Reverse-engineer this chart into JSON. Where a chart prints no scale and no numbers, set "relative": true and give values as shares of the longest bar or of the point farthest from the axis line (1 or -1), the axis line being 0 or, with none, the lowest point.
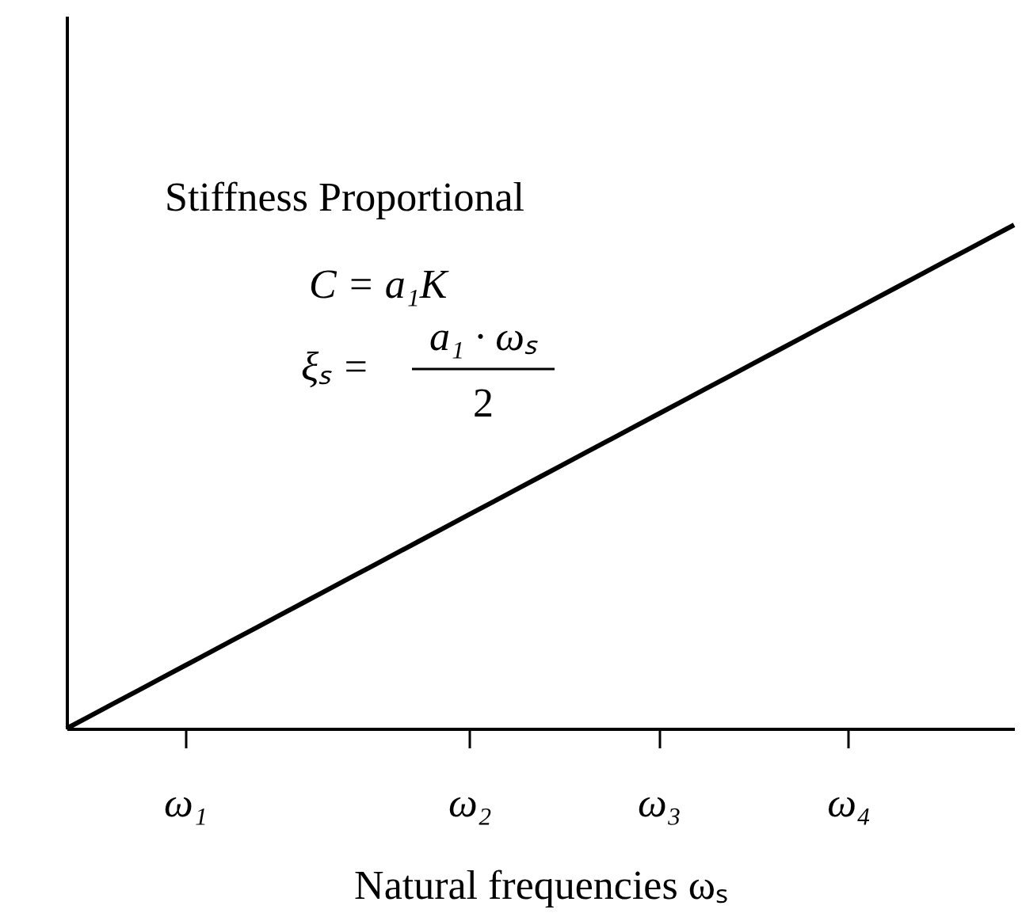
{
  "chart_data": {
    "type": "line",
    "relative": true,
    "xlabel": "Natural frequencies ωₛ",
    "categories": [
      null,
      null,
      null,
      null,
      null,
      "ω₁",
      null,
      null,
      null,
      null,
      null,
      null,
      null,
      null,
      null,
      null,
      null,
      "ω₂",
      null,
      null,
      null,
      null,
      null,
      null,
      null,
      "ω₃",
      null,
      null,
      null,
      null,
      null,
      null,
      null,
      "ω₄",
      null,
      null,
      null,
      null,
      null,
      null,
      null
    ],
    "tick_labels": "x",
    "series": [
      {
        "color": "#000000",
        "values": [
          0,
          0.025,
          0.05,
          0.075,
          0.1,
          0.125,
          0.15,
          0.175,
          0.2,
          0.225,
          0.25,
          0.275,
          0.3,
          0.325,
          0.35,
          0.375,
          0.4,
          0.425,
          0.45,
          0.475,
          0.5,
          0.525,
          0.55,
          0.575,
          0.6,
          0.625,
          0.65,
          0.675,
          0.7,
          0.725,
          0.75,
          0.775,
          0.8,
          0.825,
          0.85,
          0.875,
          0.9,
          0.925,
          0.95,
          0.975,
          1
        ]
      }
    ],
    "annotations": [
      "Stiffness Proportional",
      "C = a₁K",
      "ξₛ =",
      "a₁ · ωₛ",
      "2"
    ]
  }
}
